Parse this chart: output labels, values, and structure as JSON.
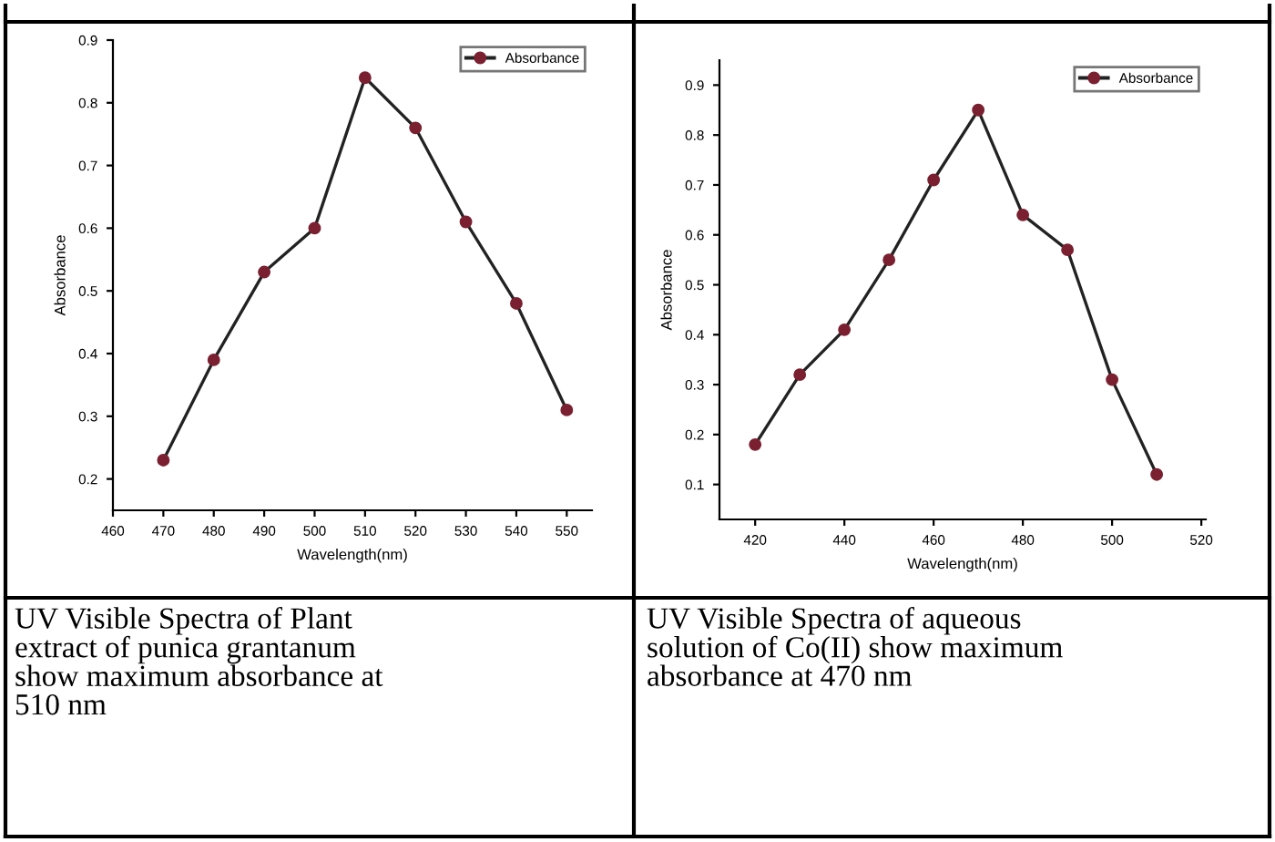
{
  "chart_data": [
    {
      "type": "line",
      "xlabel": "Wavelength(nm)",
      "ylabel": "Absorbance",
      "x": [
        470,
        480,
        490,
        500,
        510,
        520,
        530,
        540,
        550
      ],
      "series": [
        {
          "name": "Absorbance",
          "color": "#7a2030",
          "values": [
            0.23,
            0.39,
            0.53,
            0.6,
            0.84,
            0.76,
            0.61,
            0.48,
            0.31
          ]
        }
      ],
      "xlim": [
        460,
        555
      ],
      "xticks": [
        460,
        470,
        480,
        490,
        500,
        510,
        520,
        530,
        540,
        550
      ],
      "ylim": [
        0.15,
        0.9
      ],
      "yticks": [
        0.2,
        0.3,
        0.4,
        0.5,
        0.6,
        0.7,
        0.8,
        0.9
      ],
      "marker": "circle",
      "line_style": "solid",
      "legend": "top right",
      "grid": false,
      "annotations": [
        "UV Visible Spectra of Plant\nextract of punica grantanum\nshow maximum absorbance at\n510 nm"
      ]
    },
    {
      "type": "line",
      "xlabel": "Wavelength(nm)",
      "ylabel": "Absorbance",
      "x": [
        420,
        430,
        440,
        450,
        460,
        470,
        480,
        490,
        500,
        510
      ],
      "series": [
        {
          "name": "Absorbance",
          "color": "#7a2030",
          "values": [
            0.18,
            0.32,
            0.41,
            0.55,
            0.71,
            0.85,
            0.64,
            0.57,
            0.31,
            0.12
          ]
        }
      ],
      "xlim": [
        412,
        521
      ],
      "xticks": [
        420,
        440,
        460,
        480,
        500,
        520
      ],
      "ylim": [
        0.03,
        0.95
      ],
      "yticks": [
        0.1,
        0.2,
        0.3,
        0.4,
        0.5,
        0.6,
        0.7,
        0.8,
        0.9
      ],
      "marker": "circle",
      "line_style": "solid",
      "legend": "top right",
      "grid": false,
      "annotations": [
        "UV Visible Spectra of aqueous\nsolution of Co(II) show maximum\nabsorbance at 470 nm"
      ]
    }
  ]
}
